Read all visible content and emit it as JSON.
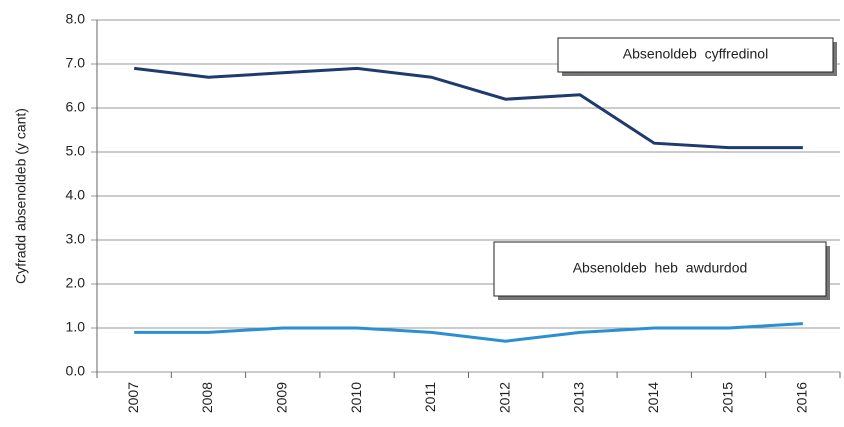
{
  "chart_data": {
    "type": "line",
    "y_label": "Cyfradd absenoldeb (y cant)",
    "categories": [
      "2007",
      "2008",
      "2009",
      "2010",
      "2011",
      "2012",
      "2013",
      "2014",
      "2015",
      "2016"
    ],
    "series": [
      {
        "name": "Absenoldeb cyffredinol",
        "color": "#1f3a6e",
        "values": [
          6.9,
          6.7,
          6.8,
          6.9,
          6.7,
          6.2,
          6.3,
          5.2,
          5.1,
          5.1
        ]
      },
      {
        "name": "Absenoldeb heb awdurdod",
        "color": "#2b8fd1",
        "values": [
          0.9,
          0.9,
          1.0,
          1.0,
          0.9,
          0.7,
          0.9,
          1.0,
          1.0,
          1.1
        ]
      }
    ],
    "ylim": [
      0,
      8
    ],
    "yticks": [
      {
        "value": 0,
        "label": "0.0"
      },
      {
        "value": 1,
        "label": "1.0"
      },
      {
        "value": 2,
        "label": "2.0"
      },
      {
        "value": 3,
        "label": "3.0"
      },
      {
        "value": 4,
        "label": "4.0"
      },
      {
        "value": 5,
        "label": "5.0"
      },
      {
        "value": 6,
        "label": "6.0"
      },
      {
        "value": 7,
        "label": "7.0"
      },
      {
        "value": 8,
        "label": "8.0"
      }
    ],
    "grid": true
  }
}
